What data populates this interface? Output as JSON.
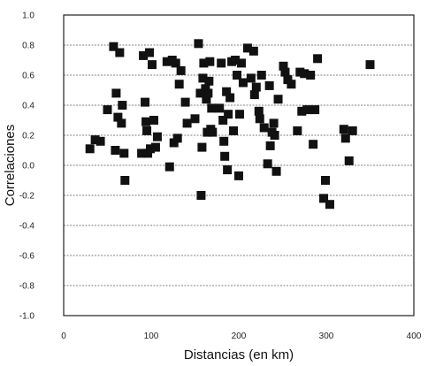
{
  "chart_data": {
    "type": "scatter",
    "title": "",
    "xlabel": "Distancias (en km)",
    "ylabel": "Correlaciones",
    "xlim": [
      0,
      400
    ],
    "ylim": [
      -1.0,
      1.0
    ],
    "x_ticks": [
      0,
      100,
      200,
      300,
      400
    ],
    "x_tick_labels": [
      "0",
      "100",
      "200",
      "300",
      "400"
    ],
    "y_ticks": [
      1.0,
      0.8,
      0.6,
      0.4,
      0.2,
      0.0,
      -0.2,
      -0.4,
      -0.6,
      -0.8,
      -1.0
    ],
    "y_tick_labels": [
      "1.0",
      "0.8",
      "0.6",
      "0.4",
      "0.2",
      "0.0",
      "-0.2",
      "-0.4",
      "-0.6",
      "-0.8",
      "-1.0"
    ],
    "grid": "horizontal",
    "marker": "square",
    "marker_color": "#111111",
    "points": [
      {
        "x": 30,
        "y": 0.11
      },
      {
        "x": 36,
        "y": 0.17
      },
      {
        "x": 42,
        "y": 0.16
      },
      {
        "x": 50,
        "y": 0.37
      },
      {
        "x": 57,
        "y": 0.79
      },
      {
        "x": 59,
        "y": 0.1
      },
      {
        "x": 60,
        "y": 0.48
      },
      {
        "x": 62,
        "y": 0.32
      },
      {
        "x": 64,
        "y": 0.75
      },
      {
        "x": 66,
        "y": 0.28
      },
      {
        "x": 67,
        "y": 0.4
      },
      {
        "x": 69,
        "y": 0.08
      },
      {
        "x": 70,
        "y": -0.1
      },
      {
        "x": 89,
        "y": 0.08
      },
      {
        "x": 91,
        "y": 0.73
      },
      {
        "x": 93,
        "y": 0.42
      },
      {
        "x": 94,
        "y": 0.29
      },
      {
        "x": 95,
        "y": 0.23
      },
      {
        "x": 96,
        "y": 0.08
      },
      {
        "x": 98,
        "y": 0.75
      },
      {
        "x": 99,
        "y": 0.11
      },
      {
        "x": 101,
        "y": 0.67
      },
      {
        "x": 103,
        "y": 0.3
      },
      {
        "x": 105,
        "y": 0.12
      },
      {
        "x": 107,
        "y": 0.19
      },
      {
        "x": 118,
        "y": 0.69
      },
      {
        "x": 121,
        "y": -0.01
      },
      {
        "x": 124,
        "y": 0.7
      },
      {
        "x": 126,
        "y": 0.15
      },
      {
        "x": 128,
        "y": 0.68
      },
      {
        "x": 130,
        "y": 0.18
      },
      {
        "x": 132,
        "y": 0.54
      },
      {
        "x": 134,
        "y": 0.63
      },
      {
        "x": 139,
        "y": 0.42
      },
      {
        "x": 141,
        "y": 0.28
      },
      {
        "x": 150,
        "y": 0.31
      },
      {
        "x": 154,
        "y": 0.81
      },
      {
        "x": 156,
        "y": 0.48
      },
      {
        "x": 157,
        "y": -0.2
      },
      {
        "x": 158,
        "y": 0.12
      },
      {
        "x": 159,
        "y": 0.58
      },
      {
        "x": 160,
        "y": 0.68
      },
      {
        "x": 162,
        "y": 0.51
      },
      {
        "x": 163,
        "y": 0.44
      },
      {
        "x": 164,
        "y": 0.22
      },
      {
        "x": 165,
        "y": 0.48
      },
      {
        "x": 166,
        "y": 0.56
      },
      {
        "x": 167,
        "y": 0.69
      },
      {
        "x": 168,
        "y": 0.24
      },
      {
        "x": 169,
        "y": 0.38
      },
      {
        "x": 170,
        "y": 0.22
      },
      {
        "x": 178,
        "y": 0.38
      },
      {
        "x": 180,
        "y": 0.68
      },
      {
        "x": 182,
        "y": 0.3
      },
      {
        "x": 183,
        "y": 0.16
      },
      {
        "x": 184,
        "y": 0.06
      },
      {
        "x": 186,
        "y": 0.49
      },
      {
        "x": 187,
        "y": -0.03
      },
      {
        "x": 188,
        "y": 0.34
      },
      {
        "x": 190,
        "y": 0.45
      },
      {
        "x": 192,
        "y": 0.69
      },
      {
        "x": 194,
        "y": 0.23
      },
      {
        "x": 196,
        "y": 0.7
      },
      {
        "x": 198,
        "y": 0.6
      },
      {
        "x": 200,
        "y": -0.07
      },
      {
        "x": 201,
        "y": 0.34
      },
      {
        "x": 203,
        "y": 0.68
      },
      {
        "x": 205,
        "y": 0.55
      },
      {
        "x": 210,
        "y": 0.78
      },
      {
        "x": 214,
        "y": 0.58
      },
      {
        "x": 217,
        "y": 0.76
      },
      {
        "x": 218,
        "y": 0.47
      },
      {
        "x": 220,
        "y": 0.52
      },
      {
        "x": 223,
        "y": 0.36
      },
      {
        "x": 224,
        "y": 0.31
      },
      {
        "x": 226,
        "y": 0.6
      },
      {
        "x": 229,
        "y": 0.25
      },
      {
        "x": 233,
        "y": 0.01
      },
      {
        "x": 235,
        "y": 0.53
      },
      {
        "x": 236,
        "y": 0.13
      },
      {
        "x": 238,
        "y": 0.22
      },
      {
        "x": 240,
        "y": 0.28
      },
      {
        "x": 241,
        "y": 0.2
      },
      {
        "x": 243,
        "y": -0.04
      },
      {
        "x": 245,
        "y": 0.44
      },
      {
        "x": 251,
        "y": 0.66
      },
      {
        "x": 253,
        "y": 0.62
      },
      {
        "x": 256,
        "y": 0.57
      },
      {
        "x": 260,
        "y": 0.54
      },
      {
        "x": 267,
        "y": 0.23
      },
      {
        "x": 270,
        "y": 0.62
      },
      {
        "x": 272,
        "y": 0.36
      },
      {
        "x": 275,
        "y": 0.61
      },
      {
        "x": 278,
        "y": 0.37
      },
      {
        "x": 282,
        "y": 0.6
      },
      {
        "x": 285,
        "y": 0.14
      },
      {
        "x": 287,
        "y": 0.37
      },
      {
        "x": 290,
        "y": 0.71
      },
      {
        "x": 297,
        "y": -0.22
      },
      {
        "x": 299,
        "y": -0.1
      },
      {
        "x": 304,
        "y": -0.26
      },
      {
        "x": 320,
        "y": 0.24
      },
      {
        "x": 322,
        "y": 0.18
      },
      {
        "x": 326,
        "y": 0.03
      },
      {
        "x": 330,
        "y": 0.23
      },
      {
        "x": 350,
        "y": 0.67
      }
    ]
  }
}
